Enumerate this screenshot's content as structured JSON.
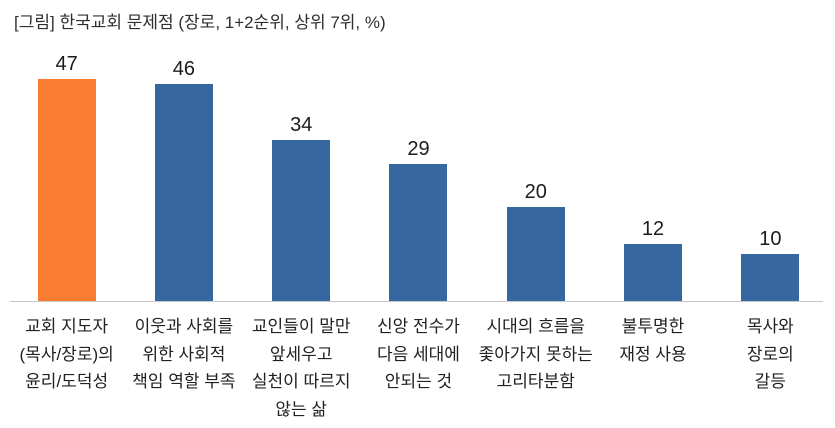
{
  "title": "[그림] 한국교회 문제점 (장로, 1+2순위, 상위 7위, %)",
  "colors": {
    "highlight_bar": "#FA7D32",
    "default_bar": "#36679E",
    "axis_line": "#C6C6C6",
    "text": "#212121"
  },
  "chart_data": {
    "type": "bar",
    "title": "[그림] 한국교회 문제점 (장로, 1+2순위, 상위 7위, %)",
    "categories": [
      "교회 지도자\n(목사/장로)의\n윤리/도덕성",
      "이웃과 사회를\n위한 사회적\n책임 역할 부족",
      "교인들이 말만\n앞세우고\n실천이 따르지\n않는 삶",
      "신앙 전수가\n다음 세대에\n안되는 것",
      "시대의 흐름을\n좇아가지 못하는\n고리타분함",
      "불투명한\n재정 사용",
      "목사와\n장로의\n갈등"
    ],
    "values": [
      47,
      46,
      34,
      29,
      20,
      12,
      10
    ],
    "data_labels": [
      "47",
      "46",
      "34",
      "29",
      "20",
      "12",
      "10"
    ],
    "highlight_index": 0,
    "xlabel": "",
    "ylabel": "",
    "ylim": [
      0,
      50
    ],
    "grid": false,
    "legend": false,
    "unit": "%"
  }
}
